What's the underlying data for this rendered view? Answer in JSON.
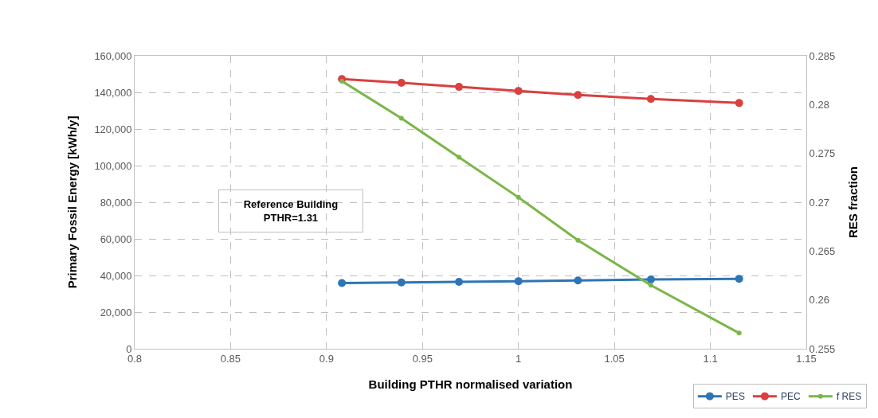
{
  "chart_data": {
    "type": "line",
    "xlabel": "Building PTHR normalised variation",
    "ylabel": "Primary Fossil Energy [kWh/y]",
    "y2label": "RES fraction",
    "x": [
      0.908,
      0.939,
      0.969,
      1.0,
      1.031,
      1.069,
      1.115
    ],
    "series": [
      {
        "name": "PES",
        "color": "#2e75b6",
        "values": [
          35900,
          36200,
          36500,
          36900,
          37300,
          37800,
          38200
        ]
      },
      {
        "name": "PEC",
        "color": "#d9403f",
        "values": [
          147300,
          145200,
          143000,
          140800,
          138600,
          136400,
          134200
        ]
      },
      {
        "name": "f RES",
        "color": "#7ab648",
        "axis": "y2",
        "values": [
          0.2824,
          0.2786,
          0.2746,
          0.2705,
          0.2661,
          0.2615,
          0.2566
        ]
      }
    ],
    "xlim": [
      0.8,
      1.15
    ],
    "xticks": [
      0.8,
      0.85,
      0.9,
      0.95,
      1,
      1.05,
      1.1,
      1.15
    ],
    "ylim": [
      0,
      160000
    ],
    "yticks": [
      {
        "value": 0,
        "label": "0"
      },
      {
        "value": 20000,
        "label": "20,000"
      },
      {
        "value": 40000,
        "label": "40,000"
      },
      {
        "value": 60000,
        "label": "60,000"
      },
      {
        "value": 80000,
        "label": "80,000"
      },
      {
        "value": 100000,
        "label": "100,000"
      },
      {
        "value": 120000,
        "label": "120,000"
      },
      {
        "value": 140000,
        "label": "140,000"
      },
      {
        "value": 160000,
        "label": "160,000"
      }
    ],
    "y2lim": [
      0.255,
      0.285
    ],
    "y2ticks": [
      0.255,
      0.26,
      0.265,
      0.27,
      0.275,
      0.28,
      0.285
    ],
    "annotations": [
      "Reference Building\nPTHR=1.31"
    ],
    "grid": true,
    "legend": "bottom right",
    "marker": "circle",
    "line_style": "solid"
  }
}
